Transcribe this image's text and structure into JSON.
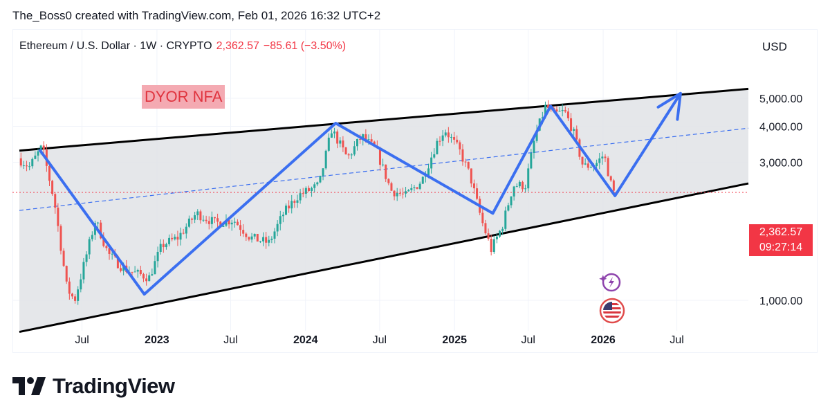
{
  "attribution": "The_Boss0 created with TradingView.com, Feb 01, 2026 16:32 UTC+2",
  "legend": {
    "symbol": "Ethereum / U.S. Dollar · 1W · CRYPTO",
    "price": "2,362.57",
    "change": "−85.61 (−3.50%)"
  },
  "currency": "USD",
  "annotation": "DYOR NFA",
  "price_tag": {
    "price": "2,362.57",
    "countdown": "09:27:14"
  },
  "brand": "TradingView",
  "icons": [
    "lightning-alert-icon",
    "us-flag-icon"
  ],
  "colors": {
    "up": "#26a69a",
    "down": "#ef5350",
    "zigzag": "#3b6ff0",
    "channel": "#000000",
    "fill": "#e0e3e6",
    "midline": "#3b6ff0",
    "price_line": "#f23645"
  },
  "chart_data": {
    "type": "candlestick",
    "timeframe": "1W",
    "y_axis_scale": "log",
    "y_ticks": [
      {
        "value": 5000,
        "label": "5,000.00"
      },
      {
        "value": 4000,
        "label": "4,000.00"
      },
      {
        "value": 3000,
        "label": "3,000.00"
      },
      {
        "value": 1000,
        "label": "1,000.00"
      }
    ],
    "x_ticks": [
      {
        "date": "2022-07-01",
        "label": "Jul",
        "bold": false
      },
      {
        "date": "2023-01-01",
        "label": "2023",
        "bold": true
      },
      {
        "date": "2023-07-01",
        "label": "Jul",
        "bold": false
      },
      {
        "date": "2024-01-01",
        "label": "2024",
        "bold": true
      },
      {
        "date": "2024-07-01",
        "label": "Jul",
        "bold": false
      },
      {
        "date": "2025-01-01",
        "label": "2025",
        "bold": true
      },
      {
        "date": "2025-07-01",
        "label": "Jul",
        "bold": false
      },
      {
        "date": "2026-01-01",
        "label": "2026",
        "bold": true
      },
      {
        "date": "2026-07-01",
        "label": "Jul",
        "bold": false
      }
    ],
    "last_price": 2362.57,
    "price_series": [
      [
        "2022-02-01",
        3100
      ],
      [
        "2022-03-01",
        2900
      ],
      [
        "2022-04-01",
        3400
      ],
      [
        "2022-05-01",
        2200
      ],
      [
        "2022-06-01",
        1100
      ],
      [
        "2022-06-20",
        1000
      ],
      [
        "2022-08-10",
        1900
      ],
      [
        "2022-09-10",
        1450
      ],
      [
        "2022-10-15",
        1300
      ],
      [
        "2022-11-10",
        1250
      ],
      [
        "2022-12-20",
        1200
      ],
      [
        "2023-01-20",
        1550
      ],
      [
        "2023-03-01",
        1650
      ],
      [
        "2023-04-15",
        2000
      ],
      [
        "2023-06-01",
        1850
      ],
      [
        "2023-07-15",
        1900
      ],
      [
        "2023-08-25",
        1650
      ],
      [
        "2023-10-10",
        1580
      ],
      [
        "2023-11-15",
        2000
      ],
      [
        "2023-12-20",
        2300
      ],
      [
        "2024-02-10",
        2500
      ],
      [
        "2024-03-12",
        3900
      ],
      [
        "2024-04-20",
        3100
      ],
      [
        "2024-05-25",
        3700
      ],
      [
        "2024-06-30",
        3300
      ],
      [
        "2024-08-05",
        2400
      ],
      [
        "2024-09-10",
        2300
      ],
      [
        "2024-10-20",
        2600
      ],
      [
        "2024-11-25",
        3500
      ],
      [
        "2024-12-15",
        3900
      ],
      [
        "2025-01-20",
        3300
      ],
      [
        "2025-02-15",
        2700
      ],
      [
        "2025-03-15",
        1900
      ],
      [
        "2025-04-08",
        1500
      ],
      [
        "2025-05-05",
        1800
      ],
      [
        "2025-06-01",
        2500
      ],
      [
        "2025-07-01",
        2500
      ],
      [
        "2025-07-25",
        3700
      ],
      [
        "2025-08-20",
        4700
      ],
      [
        "2025-09-10",
        4400
      ],
      [
        "2025-10-05",
        4500
      ],
      [
        "2025-10-25",
        3900
      ],
      [
        "2025-11-20",
        2900
      ],
      [
        "2025-12-20",
        2950
      ],
      [
        "2026-01-10",
        3200
      ],
      [
        "2026-02-01",
        2362.57
      ]
    ],
    "zigzag_path": [
      [
        "2022-03-20",
        3300
      ],
      [
        "2022-12-01",
        1050
      ],
      [
        "2024-03-15",
        4100
      ],
      [
        "2025-04-05",
        2000
      ],
      [
        "2025-08-25",
        4700
      ],
      [
        "2026-01-30",
        2300
      ],
      [
        "2026-07-10",
        5200
      ]
    ],
    "channel": {
      "upper": [
        [
          "2022-02-01",
          3300
        ],
        [
          "2026-12-31",
          5400
        ]
      ],
      "lower": [
        [
          "2022-02-01",
          780
        ],
        [
          "2026-12-31",
          2550
        ]
      ],
      "mid": [
        [
          "2022-02-01",
          2050
        ],
        [
          "2026-12-31",
          3950
        ]
      ]
    }
  }
}
